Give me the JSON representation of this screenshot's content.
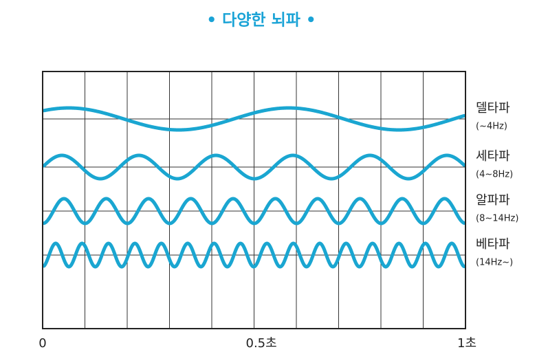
{
  "title": "• 다양한 뇌파 •",
  "waves": [
    {
      "name": "델타파",
      "range": "(~4Hz)"
    },
    {
      "name": "세타파",
      "range": "(4~8Hz)"
    },
    {
      "name": "알파파",
      "range": "(8~14Hz)"
    },
    {
      "name": "베타파",
      "range": "(14Hz~)"
    }
  ],
  "x_labels": [
    "0",
    "0.5초",
    "1초"
  ]
}
